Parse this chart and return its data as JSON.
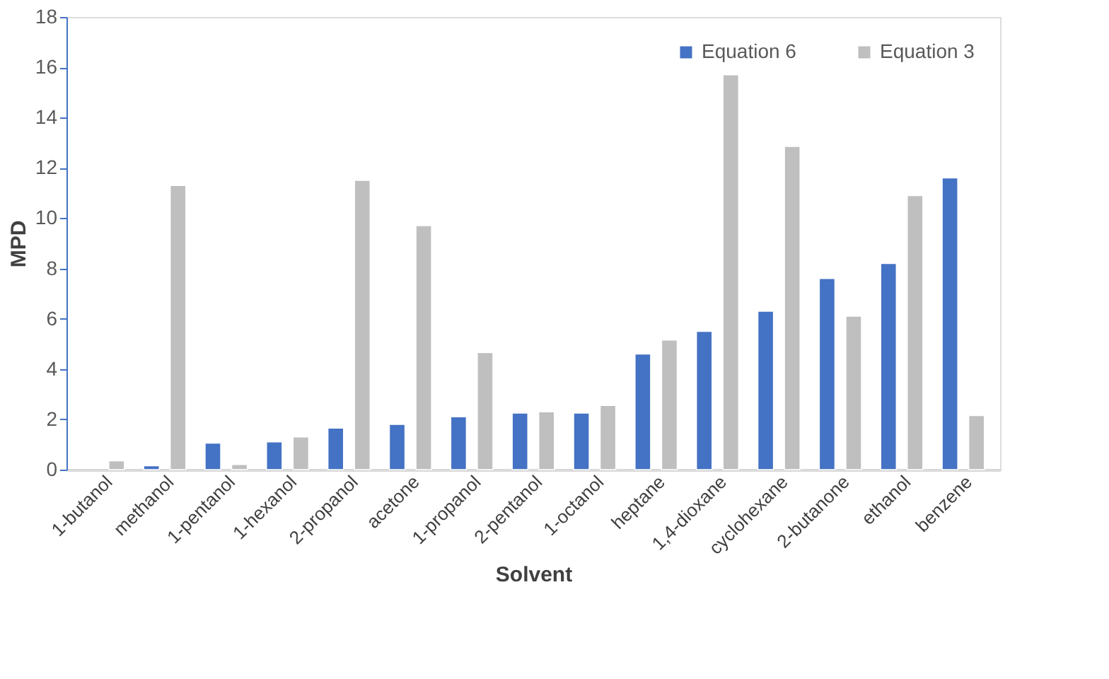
{
  "chart_data": {
    "type": "bar",
    "xlabel": "Solvent",
    "ylabel": "MPD",
    "categories": [
      "1-butanol",
      "methanol",
      "1-pentanol",
      "1-hexanol",
      "2-propanol",
      "acetone",
      "1-propanol",
      "2-pentanol",
      "1-octanol",
      "heptane",
      "1,4-dioxane",
      "cyclohexane",
      "2-butanone",
      "ethanol",
      "benzene"
    ],
    "series": [
      {
        "name": "Equation 6",
        "color": "#4472c4",
        "values": [
          null,
          0.15,
          1.05,
          1.1,
          1.65,
          1.8,
          2.1,
          2.25,
          2.25,
          4.6,
          5.5,
          6.3,
          7.6,
          8.2,
          11.6
        ]
      },
      {
        "name": "Equation 3",
        "color": "#bfbfbf",
        "values": [
          0.35,
          11.3,
          0.2,
          1.3,
          11.5,
          9.7,
          4.65,
          2.3,
          2.55,
          5.15,
          15.7,
          12.85,
          6.1,
          10.9,
          2.15
        ]
      }
    ],
    "ylim": [
      0,
      18
    ],
    "yticks": [
      0,
      2,
      4,
      6,
      8,
      10,
      12,
      14,
      16,
      18
    ],
    "grid": false,
    "legend": "top right"
  }
}
